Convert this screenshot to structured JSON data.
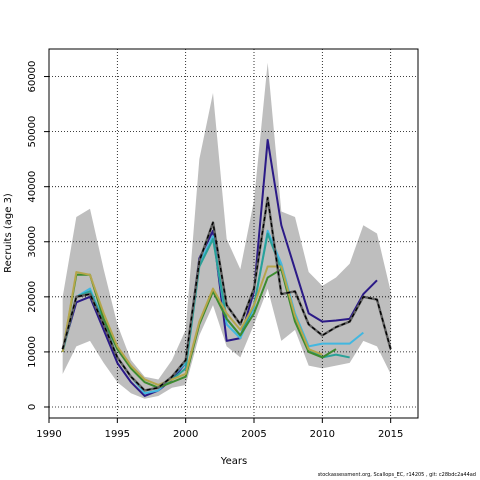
{
  "chart_data": {
    "type": "line",
    "title": "",
    "xlabel": "Years",
    "ylabel": "Recruits (age 3)",
    "xlim": [
      1990,
      2017
    ],
    "ylim": [
      -2000,
      65000
    ],
    "x_ticks": [
      1990,
      1995,
      2000,
      2005,
      2010,
      2015
    ],
    "y_ticks": [
      0,
      10000,
      20000,
      30000,
      40000,
      50000,
      60000
    ],
    "grid": true,
    "grid_style": "dotted",
    "legend": "none",
    "band": {
      "color": "#bebebe",
      "x": [
        1991,
        1992,
        1993,
        1994,
        1995,
        1996,
        1997,
        1998,
        1999,
        2000,
        2001,
        2002,
        2003,
        2004,
        2005,
        2006,
        2007,
        2008,
        2009,
        2010,
        2011,
        2012,
        2013,
        2014,
        2015
      ],
      "upper": [
        20000,
        34500,
        36000,
        25000,
        15000,
        8500,
        5500,
        5000,
        8500,
        14000,
        45000,
        57000,
        30500,
        25000,
        37500,
        62500,
        35500,
        34500,
        24500,
        22000,
        23500,
        26000,
        33000,
        31500,
        21000
      ],
      "lower": [
        6000,
        11000,
        12000,
        8000,
        4500,
        2500,
        1500,
        2000,
        3500,
        4000,
        13000,
        18500,
        11000,
        9000,
        15000,
        21500,
        12000,
        14000,
        7500,
        7000,
        7500,
        8000,
        12000,
        11000,
        6000
      ]
    },
    "series": [
      {
        "color": "#2b1a87",
        "width": 2,
        "dash": "",
        "x": [
          1991,
          1992,
          1993,
          1994,
          1995,
          1996,
          1997,
          1998,
          1999,
          2000,
          2001,
          2002,
          2003,
          2004,
          2005,
          2006,
          2007,
          2008,
          2009,
          2010,
          2011,
          2012,
          2013,
          2014
        ],
        "values": [
          10500,
          19000,
          20000,
          14000,
          8000,
          4500,
          2000,
          3000,
          5000,
          8000,
          27000,
          32000,
          12000,
          12500,
          21000,
          48500,
          33000,
          25000,
          17000,
          15500,
          15700,
          16000,
          20500,
          23000
        ]
      },
      {
        "color": "#42b7e0",
        "width": 2,
        "dash": "",
        "x": [
          1991,
          1992,
          1993,
          1994,
          1995,
          1996,
          1997,
          1998,
          1999,
          2000,
          2001,
          2002,
          2003,
          2004,
          2005,
          2006,
          2007,
          2008,
          2009,
          2010,
          2011,
          2012,
          2013
        ],
        "values": [
          10500,
          20000,
          21500,
          15500,
          9000,
          5500,
          2500,
          3000,
          5500,
          8000,
          26000,
          31000,
          15000,
          12500,
          18000,
          32000,
          26000,
          17000,
          11000,
          11500,
          11500,
          11500,
          13500
        ]
      },
      {
        "color": "#2aa198",
        "width": 2,
        "dash": "",
        "x": [
          1991,
          1992,
          1993,
          1994,
          1995,
          1996,
          1997,
          1998,
          1999,
          2000,
          2001,
          2002,
          2003,
          2004,
          2005,
          2006,
          2007,
          2008,
          2009,
          2010,
          2011,
          2012
        ],
        "values": [
          10000,
          20000,
          21000,
          15500,
          9000,
          5500,
          3000,
          3500,
          5000,
          7000,
          25500,
          30500,
          16000,
          13000,
          18500,
          31500,
          25000,
          16500,
          10500,
          9000,
          9500,
          9000
        ]
      },
      {
        "color": "#3d8b2f",
        "width": 2,
        "dash": "",
        "x": [
          1991,
          1992,
          1993,
          1994,
          1995,
          1996,
          1997,
          1998,
          1999,
          2000,
          2001,
          2002,
          2003,
          2004,
          2005,
          2006,
          2007,
          2008,
          2009,
          2010,
          2011
        ],
        "values": [
          10000,
          24000,
          24000,
          16000,
          10500,
          7000,
          4500,
          3500,
          4500,
          5500,
          15000,
          21000,
          16000,
          13000,
          17000,
          23500,
          25000,
          15500,
          10000,
          9000,
          10500
        ]
      },
      {
        "color": "#b5a64b",
        "width": 2,
        "dash": "",
        "x": [
          1991,
          1992,
          1993,
          1994,
          1995,
          1996,
          1997,
          1998,
          1999,
          2000,
          2001,
          2002,
          2003,
          2004,
          2005,
          2006,
          2007,
          2008,
          2009,
          2010
        ],
        "values": [
          10000,
          24500,
          24000,
          17000,
          11000,
          7500,
          5000,
          4000,
          5000,
          6000,
          15500,
          21500,
          17000,
          14000,
          18500,
          25500,
          25500,
          16500,
          10500,
          9500
        ]
      },
      {
        "color": "#000000",
        "width": 1.4,
        "dash": "4,3",
        "x": [
          1991,
          1992,
          1993,
          1994,
          1995,
          1996,
          1997,
          1998,
          1999,
          2000,
          2001,
          2002,
          2003,
          2004,
          2005,
          2006,
          2007,
          2008,
          2009,
          2010,
          2011,
          2012,
          2013,
          2014,
          2015
        ],
        "values": [
          10500,
          20000,
          20500,
          15000,
          9000,
          5500,
          3000,
          3500,
          5500,
          8500,
          26500,
          33500,
          18500,
          15000,
          21500,
          38000,
          20500,
          21000,
          15000,
          13000,
          14500,
          15500,
          20000,
          19500,
          10500
        ]
      },
      {
        "color": "#606060",
        "width": 2.4,
        "dash": "",
        "x": [
          1991,
          1992,
          1993,
          1994,
          1995,
          1996,
          1997,
          1998,
          1999,
          2000,
          2001,
          2002,
          2003,
          2004,
          2005,
          2006,
          2007,
          2008,
          2009,
          2010,
          2011,
          2012,
          2013,
          2014,
          2015
        ],
        "values": [
          10500,
          20000,
          20500,
          15000,
          9000,
          5500,
          3000,
          3500,
          5500,
          8500,
          26500,
          33500,
          18500,
          15000,
          21500,
          38000,
          20500,
          21000,
          15000,
          13000,
          14500,
          15500,
          20000,
          19500,
          10500
        ]
      }
    ]
  },
  "footer": "stockassessment.org,  Scallops_EC, r14205 ,  git: c28bdc2a44ad"
}
